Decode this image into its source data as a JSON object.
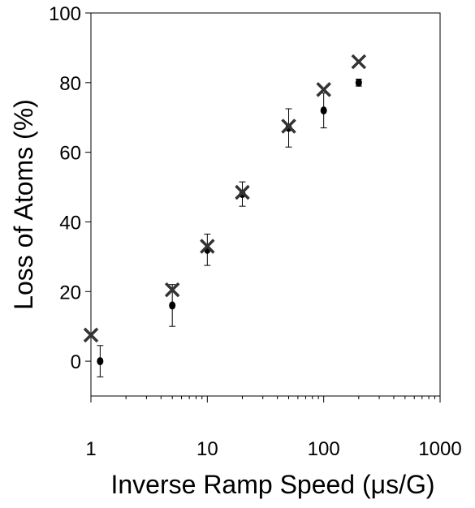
{
  "chart_data": {
    "type": "scatter",
    "title": "",
    "xlabel": "Inverse Ramp Speed (μs/G)",
    "ylabel": "Loss of Atoms (%)",
    "x_scale": "log",
    "xlim": [
      1,
      1000
    ],
    "ylim": [
      -10,
      100
    ],
    "x_ticks": [
      1,
      10,
      100,
      1000
    ],
    "x_tick_labels": [
      "1",
      "10",
      "100",
      "1000"
    ],
    "y_ticks": [
      0,
      20,
      40,
      60,
      80,
      100
    ],
    "y_tick_labels": [
      "0",
      "20",
      "40",
      "60",
      "80",
      "100"
    ],
    "grid": false,
    "legend": "none",
    "series": [
      {
        "marker": "dot",
        "color": "#000000",
        "points": [
          {
            "x": 1.2,
            "y": 0,
            "err": 4.5
          },
          {
            "x": 5,
            "y": 16,
            "err": 6
          },
          {
            "x": 10,
            "y": 32,
            "err": 4.5
          },
          {
            "x": 20,
            "y": 48,
            "err": 3.5
          },
          {
            "x": 50,
            "y": 67,
            "err": 5.5
          },
          {
            "x": 100,
            "y": 72,
            "err": 5
          },
          {
            "x": 200,
            "y": 80,
            "err": 1
          }
        ]
      },
      {
        "marker": "cross",
        "color": "#333333",
        "points": [
          {
            "x": 1,
            "y": 7.5
          },
          {
            "x": 5,
            "y": 20.5
          },
          {
            "x": 10,
            "y": 33
          },
          {
            "x": 20,
            "y": 48.5
          },
          {
            "x": 50,
            "y": 67.5
          },
          {
            "x": 100,
            "y": 78
          },
          {
            "x": 200,
            "y": 86
          }
        ]
      }
    ]
  }
}
